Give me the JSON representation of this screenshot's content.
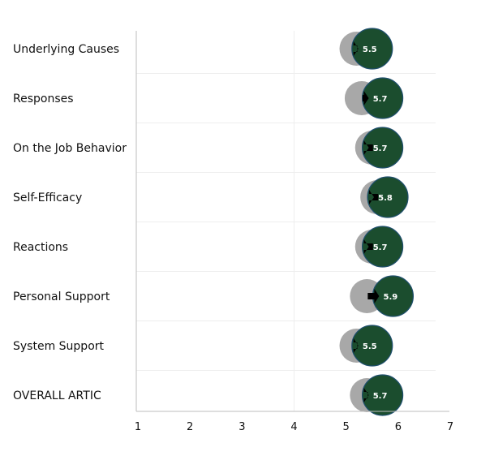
{
  "chart_data": {
    "type": "scatter",
    "subtype": "before-after dot plot",
    "title": "",
    "xlabel": "",
    "ylabel": "",
    "xlim": [
      1,
      7
    ],
    "x_ticks": [
      "1",
      "2",
      "3",
      "4",
      "5",
      "6",
      "7"
    ],
    "grid": "faint, vertical and horizontal",
    "categories": [
      "Underlying Causes",
      "Responses",
      "On the Job Behavior",
      "Self-Efficacy",
      "Reactions",
      "Personal Support",
      "System Support",
      "OVERALL ARTIC"
    ],
    "series": [
      {
        "values": [
          5.2,
          5.3,
          5.5,
          5.6,
          5.5,
          5.4,
          5.2,
          5.4
        ]
      },
      {
        "values": [
          5.5,
          5.7,
          5.7,
          5.8,
          5.7,
          5.9,
          5.5,
          5.7
        ]
      }
    ],
    "value_labels": [
      "5.5",
      "5.7",
      "5.7",
      "5.8",
      "5.7",
      "5.9",
      "5.5",
      "5.7"
    ],
    "colors": {
      "before": "#a8a8a8",
      "after": "#1b4d2e",
      "after_stroke": "#1f4f6e",
      "arrow": "#000000",
      "axis": "#bdbdbd",
      "grid": "#eeeeee"
    }
  }
}
